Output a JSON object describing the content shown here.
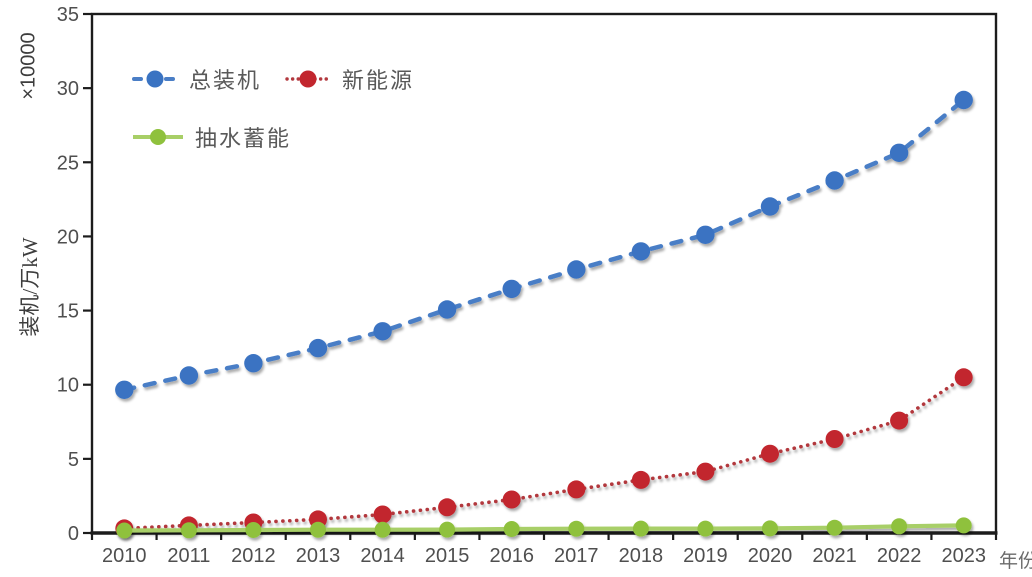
{
  "chart_data": {
    "type": "line",
    "title": "",
    "xlabel": "年份",
    "ylabel": "装机/万kW",
    "y_units_label": "×10000",
    "ylim": [
      0,
      35
    ],
    "y_ticks": [
      0,
      5,
      10,
      15,
      20,
      25,
      30,
      35
    ],
    "grid": false,
    "legend_position": "inside-top-left",
    "x": [
      "2010",
      "2011",
      "2012",
      "2013",
      "2014",
      "2015",
      "2016",
      "2017",
      "2018",
      "2019",
      "2020",
      "2021",
      "2022",
      "2023"
    ],
    "series": [
      {
        "key": "total-installed",
        "name": "总装机",
        "style": "dashed",
        "line_color": "#4A7EC6",
        "marker_color": "#3A73C2",
        "marker_radius": 9.2,
        "values": [
          9.66,
          10.62,
          11.45,
          12.47,
          13.6,
          15.07,
          16.46,
          17.77,
          18.99,
          20.11,
          22.02,
          23.77,
          25.64,
          29.2
        ]
      },
      {
        "key": "new-energy",
        "name": "新能源",
        "style": "dotted",
        "line_color": "#B2383E",
        "marker_color": "#C2262E",
        "marker_radius": 9,
        "values": [
          0.31,
          0.51,
          0.71,
          0.92,
          1.25,
          1.73,
          2.26,
          2.94,
          3.58,
          4.14,
          5.35,
          6.34,
          7.58,
          10.5
        ]
      },
      {
        "key": "pumped-storage",
        "name": "抽水蓄能",
        "style": "solid",
        "line_color": "#A8CF67",
        "marker_color": "#8FC13D",
        "marker_radius": 8,
        "values": [
          0.17,
          0.18,
          0.2,
          0.22,
          0.22,
          0.23,
          0.27,
          0.29,
          0.3,
          0.3,
          0.31,
          0.36,
          0.45,
          0.51
        ]
      }
    ]
  },
  "colors": {
    "background": "#FFFFFF",
    "frame": "#1C1C1C",
    "tick_text": "#4F4F4F",
    "axis_title_text": "#3D3D3D",
    "xlabel_text": "#6B6B6B",
    "legend_text": "#595959"
  }
}
